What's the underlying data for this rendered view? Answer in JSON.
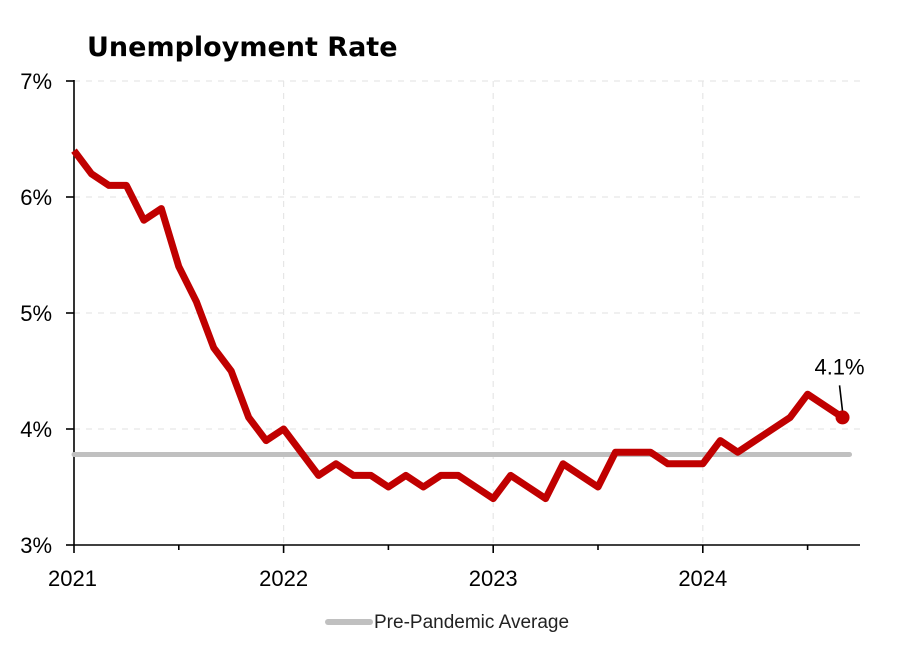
{
  "chart_data": {
    "type": "line",
    "title": "Unemployment Rate",
    "xlabel": "",
    "ylabel": "",
    "ylim": [
      3,
      7
    ],
    "xlim": [
      2021.0,
      2024.75
    ],
    "y_ticks": [
      3,
      4,
      5,
      6,
      7
    ],
    "y_tick_labels": [
      "3%",
      "4%",
      "5%",
      "6%",
      "7%"
    ],
    "x_ticks": [
      2021,
      2022,
      2023,
      2024
    ],
    "x_tick_labels": [
      "2021",
      "2022",
      "2023",
      "2024"
    ],
    "grid": true,
    "legend_position": "bottom-center",
    "series": [
      {
        "name": "",
        "color": "#c00000",
        "x": [
          2021.0,
          2021.0833,
          2021.1667,
          2021.25,
          2021.3333,
          2021.4167,
          2021.5,
          2021.5833,
          2021.6667,
          2021.75,
          2021.8333,
          2021.9167,
          2022.0,
          2022.0833,
          2022.1667,
          2022.25,
          2022.3333,
          2022.4167,
          2022.5,
          2022.5833,
          2022.6667,
          2022.75,
          2022.8333,
          2022.9167,
          2023.0,
          2023.0833,
          2023.1667,
          2023.25,
          2023.3333,
          2023.4167,
          2023.5,
          2023.5833,
          2023.6667,
          2023.75,
          2023.8333,
          2023.9167,
          2024.0,
          2024.0833,
          2024.1667,
          2024.25,
          2024.3333,
          2024.4167,
          2024.5,
          2024.5833,
          2024.6667
        ],
        "values": [
          6.4,
          6.2,
          6.1,
          6.1,
          5.8,
          5.9,
          5.4,
          5.1,
          4.7,
          4.5,
          4.1,
          3.9,
          4.0,
          3.8,
          3.6,
          3.7,
          3.6,
          3.6,
          3.5,
          3.6,
          3.5,
          3.6,
          3.6,
          3.5,
          3.4,
          3.6,
          3.5,
          3.4,
          3.7,
          3.6,
          3.5,
          3.8,
          3.8,
          3.8,
          3.7,
          3.7,
          3.7,
          3.9,
          3.8,
          3.9,
          4.0,
          4.1,
          4.3,
          4.2,
          4.1
        ]
      },
      {
        "name": "Pre-Pandemic Average",
        "color": "#c0c0c0",
        "x": [
          2021.0,
          2024.7
        ],
        "values": [
          3.78,
          3.78
        ]
      }
    ],
    "annotations": [
      {
        "text": "4.1%",
        "x": 2024.6667,
        "y": 4.1
      }
    ]
  }
}
